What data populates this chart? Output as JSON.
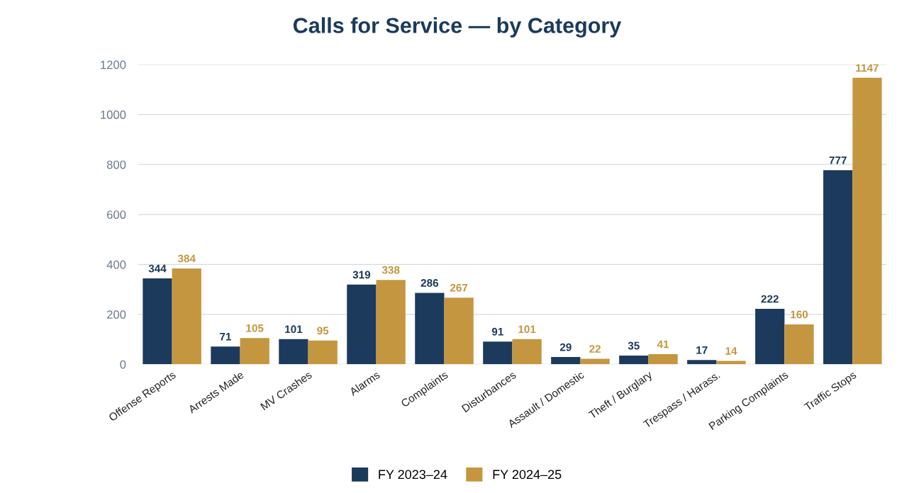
{
  "chart_data": {
    "type": "bar",
    "title": "Calls for Service — by Category",
    "categories": [
      "Offense Reports",
      "Arrests Made",
      "MV Crashes",
      "Alarms",
      "Complaints",
      "Disturbances",
      "Assault / Domestic",
      "Theft / Burglary",
      "Trespass / Harass.",
      "Parking Complaints",
      "Traffic Stops"
    ],
    "series": [
      {
        "name": "FY 2023–24",
        "color": "#1b3a5c",
        "values": [
          344,
          71,
          101,
          319,
          286,
          91,
          29,
          35,
          17,
          222,
          777
        ]
      },
      {
        "name": "FY 2024–25",
        "color": "#c4963f",
        "values": [
          384,
          105,
          95,
          338,
          267,
          101,
          22,
          41,
          14,
          160,
          1147
        ]
      }
    ],
    "ylim": [
      0,
      1200
    ],
    "yticks": [
      0,
      200,
      400,
      600,
      800,
      1000,
      1200
    ],
    "grid": "y",
    "legend": "bottom",
    "data_labels": true
  }
}
